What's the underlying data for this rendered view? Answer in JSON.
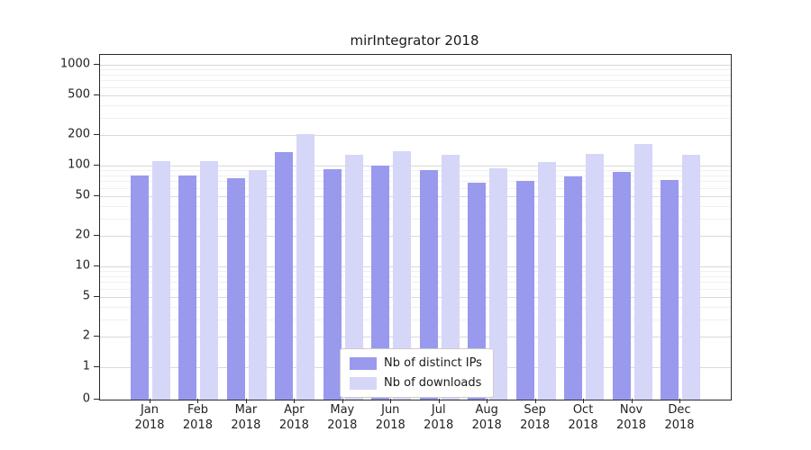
{
  "chart_data": {
    "type": "bar",
    "title": "mirIntegrator 2018",
    "year_label": "2018",
    "categories": [
      "Jan",
      "Feb",
      "Mar",
      "Apr",
      "May",
      "Jun",
      "Jul",
      "Aug",
      "Sep",
      "Oct",
      "Nov",
      "Dec"
    ],
    "series": [
      {
        "name": "Nb of distinct IPs",
        "color": "#9999ee",
        "values": [
          80,
          80,
          75,
          135,
          93,
          100,
          90,
          67,
          70,
          78,
          87,
          72
        ]
      },
      {
        "name": "Nb of downloads",
        "color": "#d6d6f8",
        "values": [
          110,
          112,
          90,
          205,
          128,
          140,
          127,
          95,
          108,
          132,
          165,
          127
        ]
      }
    ],
    "yticks": [
      0,
      1,
      2,
      5,
      10,
      20,
      50,
      100,
      200,
      500,
      1000
    ],
    "scale": "symlog",
    "grid": true,
    "legend_position": "lower center",
    "ylim": [
      0,
      1000
    ]
  }
}
